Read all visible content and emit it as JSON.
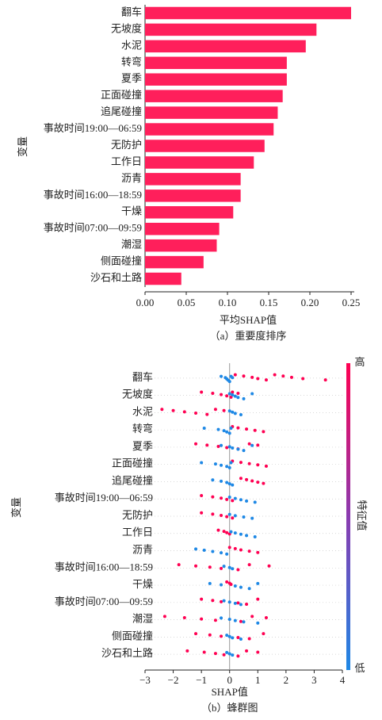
{
  "chart_data": [
    {
      "type": "barh",
      "color": "#ff1f5b",
      "xlabel": "平均SHAP值",
      "ylabel": "变量",
      "caption": "（a）重要度排序",
      "categories": [
        "翻车",
        "无坡度",
        "水泥",
        "转弯",
        "夏季",
        "正面碰撞",
        "追尾碰撞",
        "事故时间19:00—06:59",
        "无防护",
        "工作日",
        "沥青",
        "事故时间16:00—18:59",
        "干燥",
        "事故时间07:00—09:59",
        "潮湿",
        "侧面碰撞",
        "沙石和土路"
      ],
      "values": [
        0.25,
        0.208,
        0.195,
        0.172,
        0.172,
        0.167,
        0.161,
        0.156,
        0.145,
        0.132,
        0.116,
        0.116,
        0.107,
        0.09,
        0.087,
        0.071,
        0.044
      ],
      "xlim": [
        0,
        0.25
      ],
      "xticks": [
        {
          "value": 0,
          "label": "0.00"
        },
        0.05,
        {
          "value": 0.1,
          "label": "0.10"
        },
        0.15,
        {
          "value": 0.2,
          "label": "0.20"
        },
        0.25
      ]
    },
    {
      "type": "beeswarm",
      "xlabel": "SHAP值",
      "ylabel": "变量",
      "caption": "（b）蜂群图",
      "colorbar_label": "特征值",
      "categories": [
        "翻车",
        "无坡度",
        "水泥",
        "转弯",
        "夏季",
        "正面碰撞",
        "追尾碰撞",
        "事故时间19:00—06:59",
        "无防护",
        "工作日",
        "沥青",
        "事故时间16:00—18:59",
        "干燥",
        "事故时间07:00—09:59",
        "潮湿",
        "侧面碰撞",
        "沙石和土路"
      ],
      "series": [
        {
          "name": "高",
          "color": "#ff0052",
          "values": [
            [
              0.2,
              0.5,
              0.8,
              1.0,
              1.3,
              1.6,
              1.9,
              2.2,
              2.6,
              3.4
            ],
            [
              -1.0,
              -0.6,
              -0.3,
              -0.1,
              0.05,
              0.1,
              0.3
            ],
            [
              -2.4,
              -2.0,
              -1.6,
              -1.2,
              -0.8,
              -0.5,
              -0.2
            ],
            [
              0.1,
              0.3,
              0.6,
              0.9,
              1.2
            ],
            [
              -1.2,
              -0.8,
              -0.4,
              -0.1,
              0.3,
              0.7,
              1.0
            ],
            [
              0.1,
              0.4,
              0.7,
              1.0,
              1.3
            ],
            [
              0.4,
              0.6,
              0.8,
              1.0,
              1.2
            ],
            [
              -1.0,
              -0.6,
              -0.3,
              -0.1,
              0.1
            ],
            [
              -1.0,
              -0.6,
              -0.3,
              -0.1,
              0.1
            ],
            [
              -0.4,
              -0.2,
              -0.1,
              0
            ],
            [
              0,
              0.2,
              0.4,
              0.7,
              1.0
            ],
            [
              -1.8,
              -1.2,
              -0.7,
              -0.3,
              0.3,
              0.7,
              1.4
            ],
            [
              -0.1,
              0,
              0.05
            ],
            [
              -1.0,
              -0.6,
              -0.3,
              0.3,
              0.6,
              1.0
            ],
            [
              -2.3,
              -1.6,
              -1.0,
              -0.5,
              0.4,
              0.8,
              1.3
            ],
            [
              -1.2,
              -0.7,
              -0.3,
              0.3,
              0.7,
              1.2
            ],
            [
              -1.5,
              -0.9,
              -0.5,
              -0.2,
              0.3,
              0.6,
              1.0
            ]
          ]
        },
        {
          "name": "低",
          "color": "#1e88e5",
          "values": [
            [
              -0.3,
              -0.15,
              -0.1,
              -0.05,
              0,
              0.05,
              0.1
            ],
            [
              0,
              0.1,
              0.2,
              0.3,
              0.5,
              0.8
            ],
            [
              0,
              0.1,
              0.2,
              0.4
            ],
            [
              -0.9,
              -0.4,
              -0.2,
              -0.1,
              0,
              0.05
            ],
            [
              -0.3,
              0,
              0.1,
              0.3,
              0.5,
              0.8
            ],
            [
              -1.0,
              -0.5,
              -0.3,
              -0.1,
              0,
              0.05
            ],
            [
              -0.6,
              -0.3,
              -0.1,
              0,
              0.1
            ],
            [
              0,
              0.2,
              0.4,
              0.6,
              0.9
            ],
            [
              0,
              0.2,
              0.5,
              0.8
            ],
            [
              0.05,
              0.2,
              0.4,
              0.6,
              0.9
            ],
            [
              -1.2,
              -0.9,
              -0.6,
              -0.3,
              -0.1
            ],
            [
              -0.2,
              0,
              0.1
            ],
            [
              -0.7,
              -0.3,
              0.2,
              0.4,
              0.7,
              1.0
            ],
            [
              -0.2,
              0,
              0.2,
              0.4
            ],
            [
              -0.3,
              0,
              0.2,
              0.5,
              1.0
            ],
            [
              -0.1,
              0,
              0.1,
              0.4
            ],
            [
              -0.1,
              0,
              0.1
            ]
          ]
        }
      ],
      "xlim": [
        -3,
        4
      ],
      "xticks": [
        {
          "value": -3,
          "label": "−3"
        },
        {
          "value": -2,
          "label": "−2"
        },
        {
          "value": -1,
          "label": "−1"
        },
        0,
        1,
        2,
        3,
        4
      ]
    }
  ]
}
